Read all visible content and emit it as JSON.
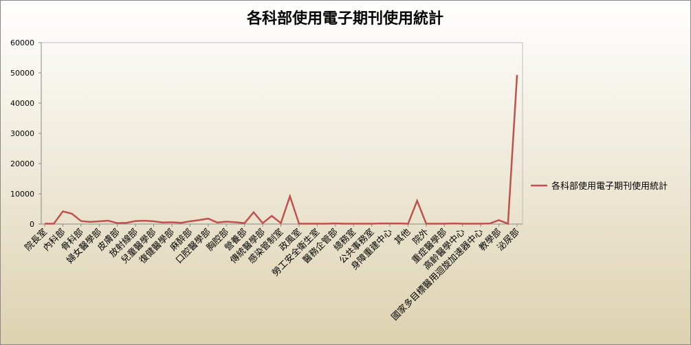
{
  "chart_data": {
    "type": "line",
    "title": "各科部使用電子期刊使用統計",
    "categories": [
      "院長室",
      null,
      "內科部",
      null,
      "骨科部",
      null,
      "婦女醫學部",
      null,
      "皮膚部",
      null,
      "放射線部",
      null,
      "兒童醫學部",
      null,
      "復健醫學部",
      null,
      "麻醉部",
      null,
      "口腔醫學部",
      null,
      "胸腔部",
      null,
      "營養部",
      null,
      "傳統醫學部",
      null,
      "感染管制室",
      null,
      "政風室",
      null,
      "勞工安全衛生室",
      null,
      "醫務企管部",
      null,
      "總務室",
      null,
      "公共事務室",
      null,
      "身障重建中心",
      null,
      "其他",
      null,
      "院外",
      null,
      "重症醫學部",
      null,
      "高齡醫學中心",
      null,
      "國家多目標醫用迴旋加速器中心",
      null,
      "教學部",
      null,
      "泌尿部"
    ],
    "series": [
      {
        "name": "各科部使用電子期刊使用統計",
        "color": "#c0504d",
        "values": [
          100,
          100,
          4200,
          3400,
          1000,
          700,
          900,
          1100,
          300,
          400,
          1000,
          1100,
          900,
          500,
          600,
          400,
          900,
          1300,
          1800,
          500,
          800,
          600,
          300,
          3900,
          300,
          2700,
          300,
          9200,
          100,
          100,
          100,
          100,
          200,
          100,
          100,
          100,
          100,
          200,
          200,
          200,
          100,
          7700,
          100,
          100,
          100,
          200,
          100,
          100,
          100,
          200,
          1300,
          100,
          49300
        ]
      }
    ],
    "ylim": [
      0,
      60000
    ],
    "yticks": [
      0,
      10000,
      20000,
      30000,
      40000,
      50000,
      60000
    ],
    "grid": false,
    "legend": "right"
  }
}
